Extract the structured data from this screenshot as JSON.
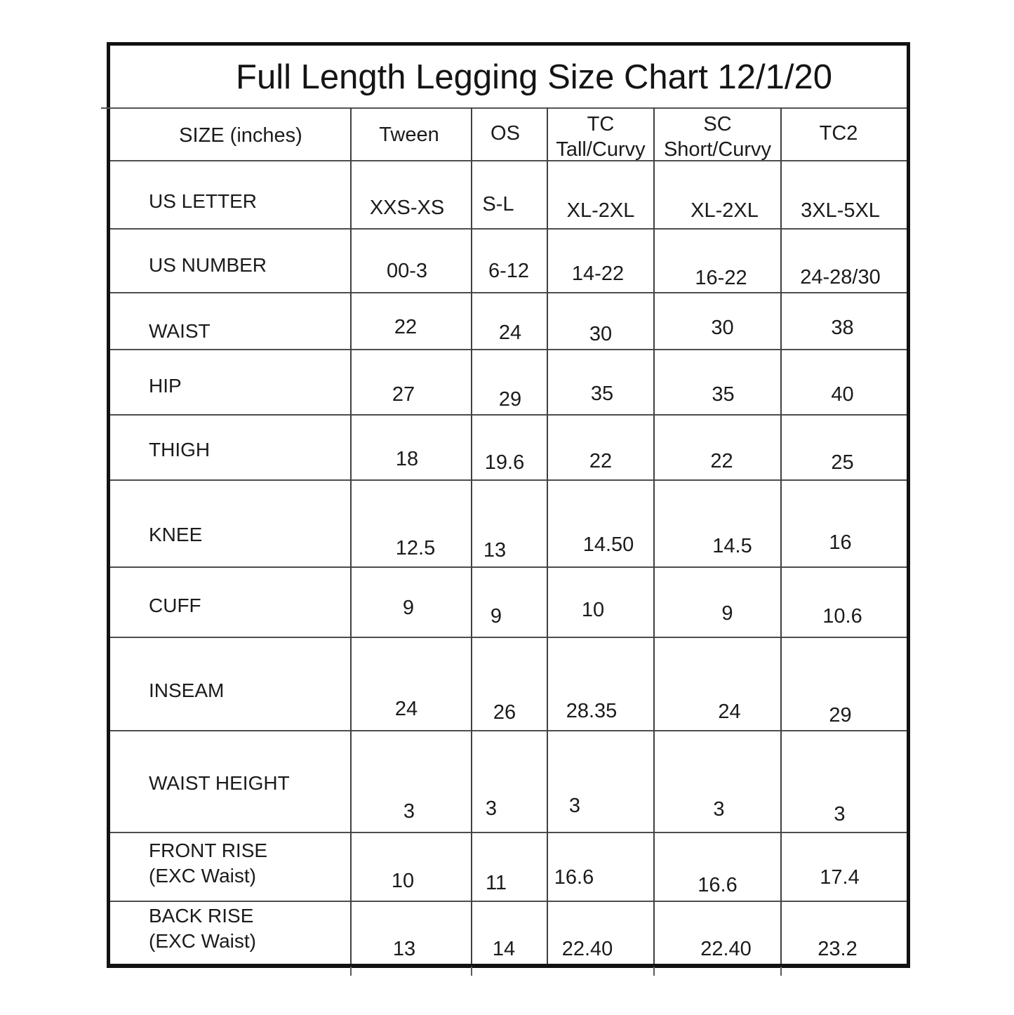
{
  "title": "Full Length Legging Size Chart 12/1/20",
  "table": {
    "columns": [
      {
        "id": "size",
        "label": "SIZE (inches)"
      },
      {
        "id": "tween",
        "label": "Tween"
      },
      {
        "id": "os",
        "label": "OS"
      },
      {
        "id": "tc",
        "label": "TC",
        "sublabel": "Tall/Curvy"
      },
      {
        "id": "sc",
        "label": "SC",
        "sublabel": "Short/Curvy"
      },
      {
        "id": "tc2",
        "label": "TC2"
      }
    ],
    "rows": [
      {
        "label": "US LETTER",
        "values": [
          "XXS-XS",
          "S-L",
          "XL-2XL",
          "XL-2XL",
          "3XL-5XL"
        ]
      },
      {
        "label": "US NUMBER",
        "values": [
          "00-3",
          "6-12",
          "14-22",
          "16-22",
          "24-28/30"
        ]
      },
      {
        "label": "WAIST",
        "values": [
          "22",
          "24",
          "30",
          "30",
          "38"
        ]
      },
      {
        "label": "HIP",
        "values": [
          "27",
          "29",
          "35",
          "35",
          "40"
        ]
      },
      {
        "label": "THIGH",
        "values": [
          "18",
          "19.6",
          "22",
          "22",
          "25"
        ]
      },
      {
        "label": "KNEE",
        "values": [
          "12.5",
          "13",
          "14.50",
          "14.5",
          "16"
        ]
      },
      {
        "label": "CUFF",
        "values": [
          "9",
          "9",
          "10",
          "9",
          "10.6"
        ]
      },
      {
        "label": "INSEAM",
        "values": [
          "24",
          "26",
          "28.35",
          "24",
          "29"
        ]
      },
      {
        "label": "WAIST HEIGHT",
        "values": [
          "3",
          "3",
          "3",
          "3",
          "3"
        ]
      },
      {
        "label": "FRONT RISE",
        "label2": "(EXC Waist)",
        "values": [
          "10",
          "11",
          "16.6",
          "16.6",
          "17.4"
        ]
      },
      {
        "label": "BACK RISE",
        "label2": "(EXC Waist)",
        "values": [
          "13",
          "14",
          "22.40",
          "22.40",
          "23.2"
        ]
      }
    ]
  }
}
